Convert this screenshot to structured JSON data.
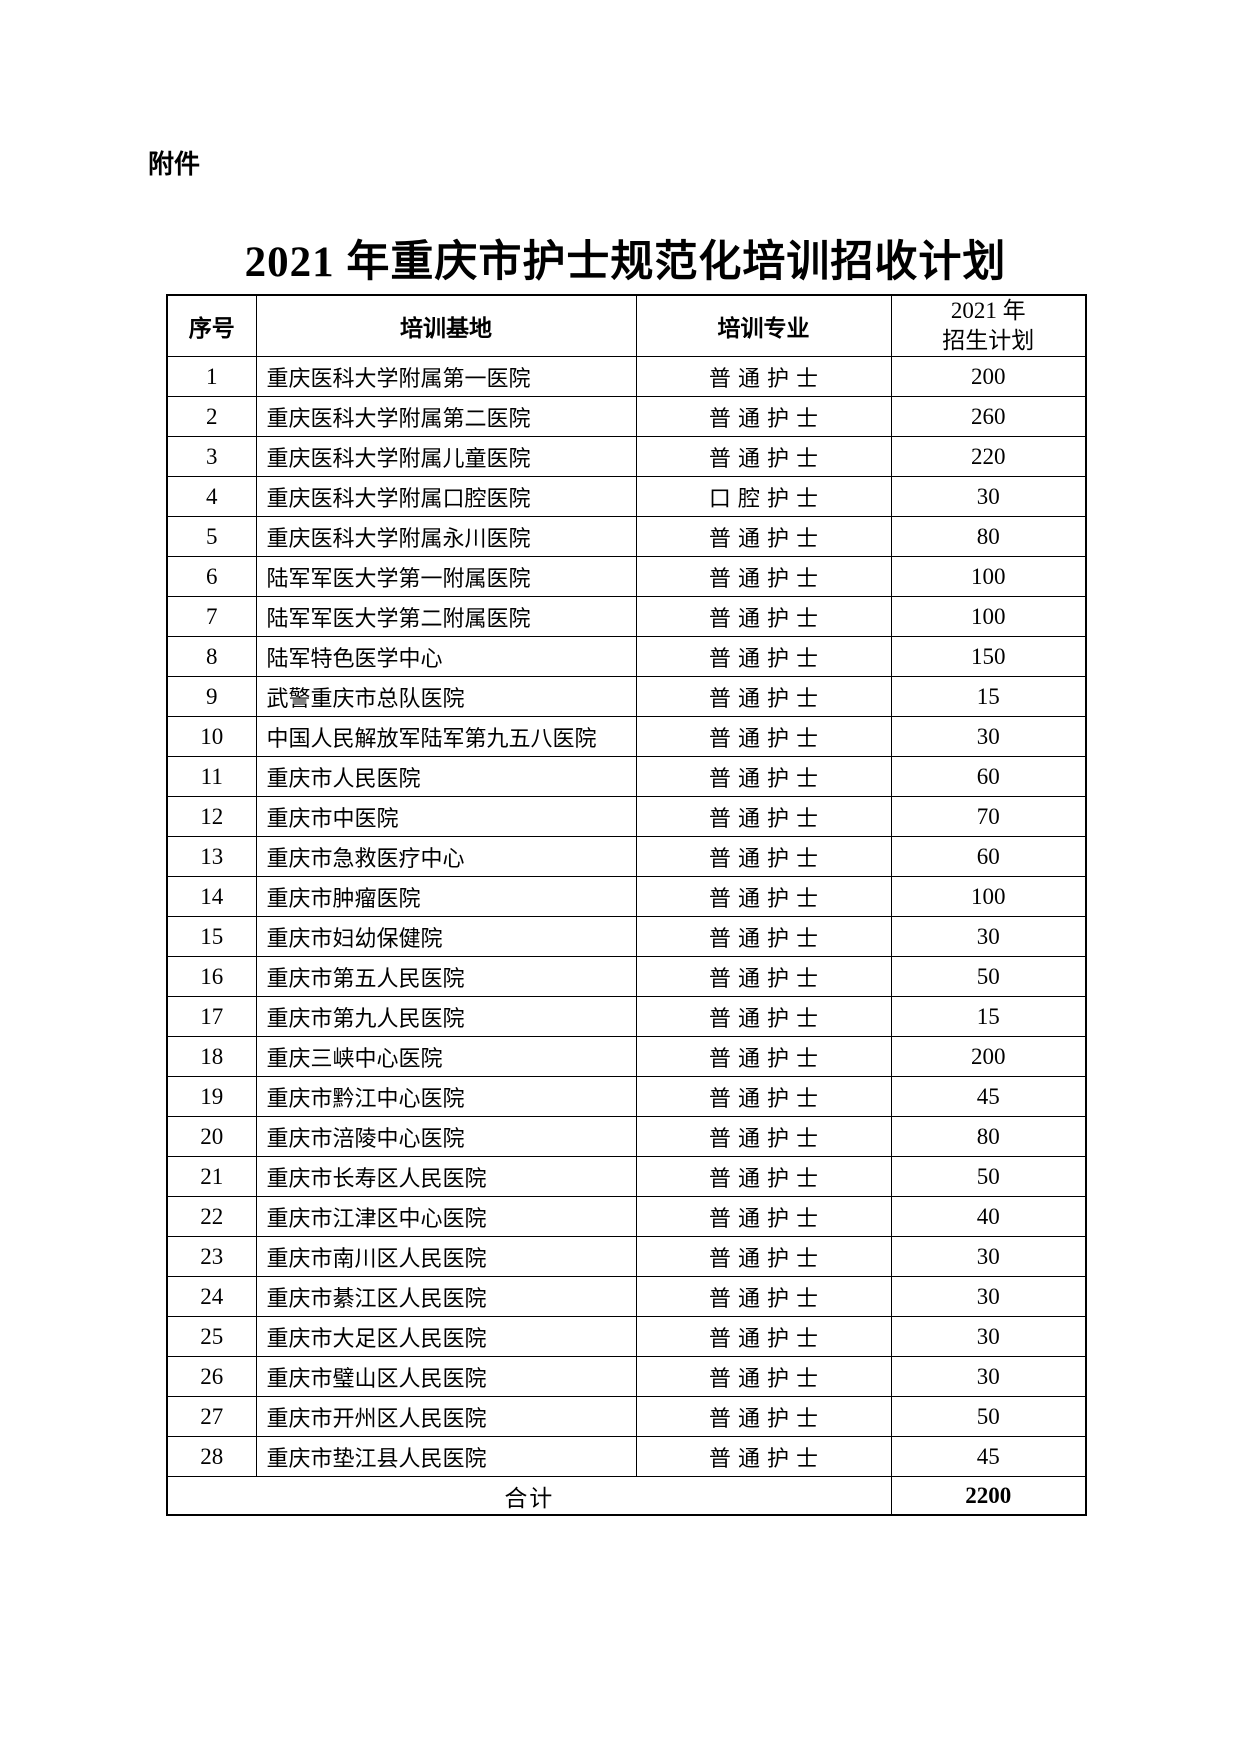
{
  "page": {
    "attachment_label": "附件",
    "title": "2021 年重庆市护士规范化培训招收计划"
  },
  "table": {
    "headers": {
      "no": "序号",
      "base": "培训基地",
      "specialty": "培训专业",
      "plan_line1": "2021 年",
      "plan_line2": "招生计划"
    },
    "rows": [
      {
        "no": "1",
        "base": "重庆医科大学附属第一医院",
        "specialty": "普通护士",
        "plan": "200"
      },
      {
        "no": "2",
        "base": "重庆医科大学附属第二医院",
        "specialty": "普通护士",
        "plan": "260"
      },
      {
        "no": "3",
        "base": "重庆医科大学附属儿童医院",
        "specialty": "普通护士",
        "plan": "220"
      },
      {
        "no": "4",
        "base": "重庆医科大学附属口腔医院",
        "specialty": "口腔护士",
        "plan": "30"
      },
      {
        "no": "5",
        "base": "重庆医科大学附属永川医院",
        "specialty": "普通护士",
        "plan": "80"
      },
      {
        "no": "6",
        "base": "陆军军医大学第一附属医院",
        "specialty": "普通护士",
        "plan": "100"
      },
      {
        "no": "7",
        "base": "陆军军医大学第二附属医院",
        "specialty": "普通护士",
        "plan": "100"
      },
      {
        "no": "8",
        "base": "陆军特色医学中心",
        "specialty": "普通护士",
        "plan": "150"
      },
      {
        "no": "9",
        "base": "武警重庆市总队医院",
        "specialty": "普通护士",
        "plan": "15"
      },
      {
        "no": "10",
        "base": "中国人民解放军陆军第九五八医院",
        "specialty": "普通护士",
        "plan": "30"
      },
      {
        "no": "11",
        "base": "重庆市人民医院",
        "specialty": "普通护士",
        "plan": "60"
      },
      {
        "no": "12",
        "base": "重庆市中医院",
        "specialty": "普通护士",
        "plan": "70"
      },
      {
        "no": "13",
        "base": "重庆市急救医疗中心",
        "specialty": "普通护士",
        "plan": "60"
      },
      {
        "no": "14",
        "base": "重庆市肿瘤医院",
        "specialty": "普通护士",
        "plan": "100"
      },
      {
        "no": "15",
        "base": "重庆市妇幼保健院",
        "specialty": "普通护士",
        "plan": "30"
      },
      {
        "no": "16",
        "base": "重庆市第五人民医院",
        "specialty": "普通护士",
        "plan": "50"
      },
      {
        "no": "17",
        "base": "重庆市第九人民医院",
        "specialty": "普通护士",
        "plan": "15"
      },
      {
        "no": "18",
        "base": "重庆三峡中心医院",
        "specialty": "普通护士",
        "plan": "200"
      },
      {
        "no": "19",
        "base": "重庆市黔江中心医院",
        "specialty": "普通护士",
        "plan": "45"
      },
      {
        "no": "20",
        "base": "重庆市涪陵中心医院",
        "specialty": "普通护士",
        "plan": "80"
      },
      {
        "no": "21",
        "base": "重庆市长寿区人民医院",
        "specialty": "普通护士",
        "plan": "50"
      },
      {
        "no": "22",
        "base": "重庆市江津区中心医院",
        "specialty": "普通护士",
        "plan": "40"
      },
      {
        "no": "23",
        "base": "重庆市南川区人民医院",
        "specialty": "普通护士",
        "plan": "30"
      },
      {
        "no": "24",
        "base": "重庆市綦江区人民医院",
        "specialty": "普通护士",
        "plan": "30"
      },
      {
        "no": "25",
        "base": "重庆市大足区人民医院",
        "specialty": "普通护士",
        "plan": "30"
      },
      {
        "no": "26",
        "base": "重庆市璧山区人民医院",
        "specialty": "普通护士",
        "plan": "30"
      },
      {
        "no": "27",
        "base": "重庆市开州区人民医院",
        "specialty": "普通护士",
        "plan": "50"
      },
      {
        "no": "28",
        "base": "重庆市垫江县人民医院",
        "specialty": "普通护士",
        "plan": "45"
      }
    ],
    "total": {
      "label": "合计",
      "value": "2200"
    }
  }
}
